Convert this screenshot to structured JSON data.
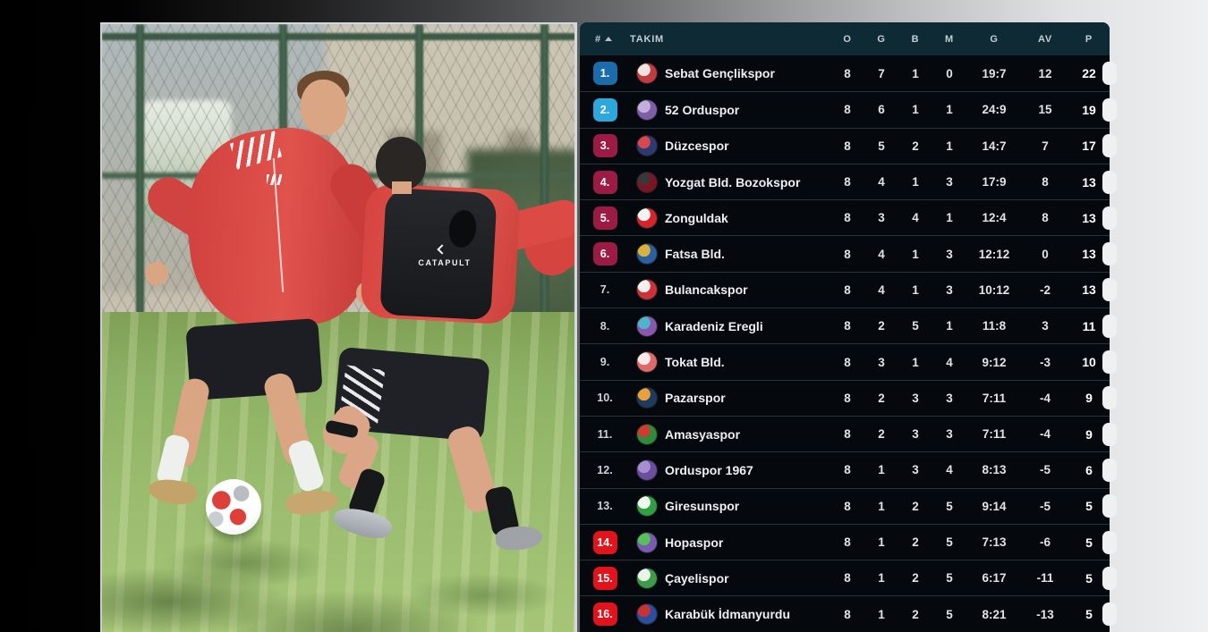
{
  "page": {
    "background_left": "#000000",
    "background_right": "#eef0f2"
  },
  "photo": {
    "vest_text": "CATAPULT"
  },
  "table": {
    "header": {
      "pos": "#",
      "team": "TAKIM",
      "o": "O",
      "g": "G",
      "b": "B",
      "m": "M",
      "goals": "G",
      "av": "AV",
      "p": "P"
    },
    "colors": {
      "header_bg": "#0d2a35",
      "row_bg": "#05080c",
      "separator": "#28323b",
      "promotion_primary": "#1a6cab",
      "promotion_secondary": "#2ea8dc",
      "playoff": "#9c1b44",
      "relegation": "#e1141d"
    },
    "rows": [
      {
        "pos": "1.",
        "team": "Sebat Gençlikspor",
        "o": "8",
        "g": "7",
        "b": "1",
        "m": "0",
        "goals": "19:7",
        "av": "12",
        "p": "22",
        "pos_bg": "#1a6cab",
        "logo": [
          "#c23b3f",
          "#f0e3e0"
        ]
      },
      {
        "pos": "2.",
        "team": "52 Orduspor",
        "o": "8",
        "g": "6",
        "b": "1",
        "m": "1",
        "goals": "24:9",
        "av": "15",
        "p": "19",
        "pos_bg": "#2ea8dc",
        "logo": [
          "#7d5fa8",
          "#c3aede"
        ]
      },
      {
        "pos": "3.",
        "team": "Düzcespor",
        "o": "8",
        "g": "5",
        "b": "2",
        "m": "1",
        "goals": "14:7",
        "av": "7",
        "p": "17",
        "pos_bg": "#9c1b44",
        "logo": [
          "#2c3a72",
          "#d84750"
        ]
      },
      {
        "pos": "4.",
        "team": "Yozgat Bld. Bozokspor",
        "o": "8",
        "g": "4",
        "b": "1",
        "m": "3",
        "goals": "17:9",
        "av": "8",
        "p": "13",
        "pos_bg": "#9c1b44",
        "logo": [
          "#7c1424",
          "#3a3836"
        ]
      },
      {
        "pos": "5.",
        "team": "Zonguldak",
        "o": "8",
        "g": "3",
        "b": "4",
        "m": "1",
        "goals": "12:4",
        "av": "8",
        "p": "13",
        "pos_bg": "#9c1b44",
        "logo": [
          "#d8232a",
          "#f4f4f4"
        ]
      },
      {
        "pos": "6.",
        "team": "Fatsa Bld.",
        "o": "8",
        "g": "4",
        "b": "1",
        "m": "3",
        "goals": "12:12",
        "av": "0",
        "p": "13",
        "pos_bg": "#9c1b44",
        "logo": [
          "#2b5fa3",
          "#d9b13b"
        ]
      },
      {
        "pos": "7.",
        "team": "Bulancakspor",
        "o": "8",
        "g": "4",
        "b": "1",
        "m": "3",
        "goals": "10:12",
        "av": "-2",
        "p": "13",
        "pos_bg": null,
        "logo": [
          "#d03038",
          "#f6efef"
        ]
      },
      {
        "pos": "8.",
        "team": "Karadeniz Eregli",
        "o": "8",
        "g": "2",
        "b": "5",
        "m": "1",
        "goals": "11:8",
        "av": "3",
        "p": "11",
        "pos_bg": null,
        "logo": [
          "#8a56b0",
          "#4fb3c9"
        ]
      },
      {
        "pos": "9.",
        "team": "Tokat Bld.",
        "o": "8",
        "g": "3",
        "b": "1",
        "m": "4",
        "goals": "9:12",
        "av": "-3",
        "p": "10",
        "pos_bg": null,
        "logo": [
          "#e06a6a",
          "#fbeaea"
        ]
      },
      {
        "pos": "10.",
        "team": "Pazarspor",
        "o": "8",
        "g": "2",
        "b": "3",
        "m": "3",
        "goals": "7:11",
        "av": "-4",
        "p": "9",
        "pos_bg": null,
        "logo": [
          "#1f3a5f",
          "#e8a13c"
        ]
      },
      {
        "pos": "11.",
        "team": "Amasyaspor",
        "o": "8",
        "g": "2",
        "b": "3",
        "m": "3",
        "goals": "7:11",
        "av": "-4",
        "p": "9",
        "pos_bg": null,
        "logo": [
          "#2e8b3a",
          "#cf3b31"
        ]
      },
      {
        "pos": "12.",
        "team": "Orduspor 1967",
        "o": "8",
        "g": "1",
        "b": "3",
        "m": "4",
        "goals": "8:13",
        "av": "-5",
        "p": "6",
        "pos_bg": null,
        "logo": [
          "#6a4fa0",
          "#a68fd0"
        ]
      },
      {
        "pos": "13.",
        "team": "Giresunspor",
        "o": "8",
        "g": "1",
        "b": "2",
        "m": "5",
        "goals": "9:14",
        "av": "-5",
        "p": "5",
        "pos_bg": null,
        "logo": [
          "#2f9e44",
          "#eef7ee"
        ]
      },
      {
        "pos": "14.",
        "team": "Hopaspor",
        "o": "8",
        "g": "1",
        "b": "2",
        "m": "5",
        "goals": "7:13",
        "av": "-6",
        "p": "5",
        "pos_bg": "#e1141d",
        "logo": [
          "#7b5bb0",
          "#58c05a"
        ]
      },
      {
        "pos": "15.",
        "team": "Çayelispor",
        "o": "8",
        "g": "1",
        "b": "2",
        "m": "5",
        "goals": "6:17",
        "av": "-11",
        "p": "5",
        "pos_bg": "#e1141d",
        "logo": [
          "#3d9c4a",
          "#e9f4e9"
        ]
      },
      {
        "pos": "16.",
        "team": "Karabük İdmanyurdu",
        "o": "8",
        "g": "1",
        "b": "2",
        "m": "5",
        "goals": "8:21",
        "av": "-13",
        "p": "5",
        "pos_bg": "#e1141d",
        "logo": [
          "#2b4f9e",
          "#c93333"
        ]
      }
    ]
  }
}
